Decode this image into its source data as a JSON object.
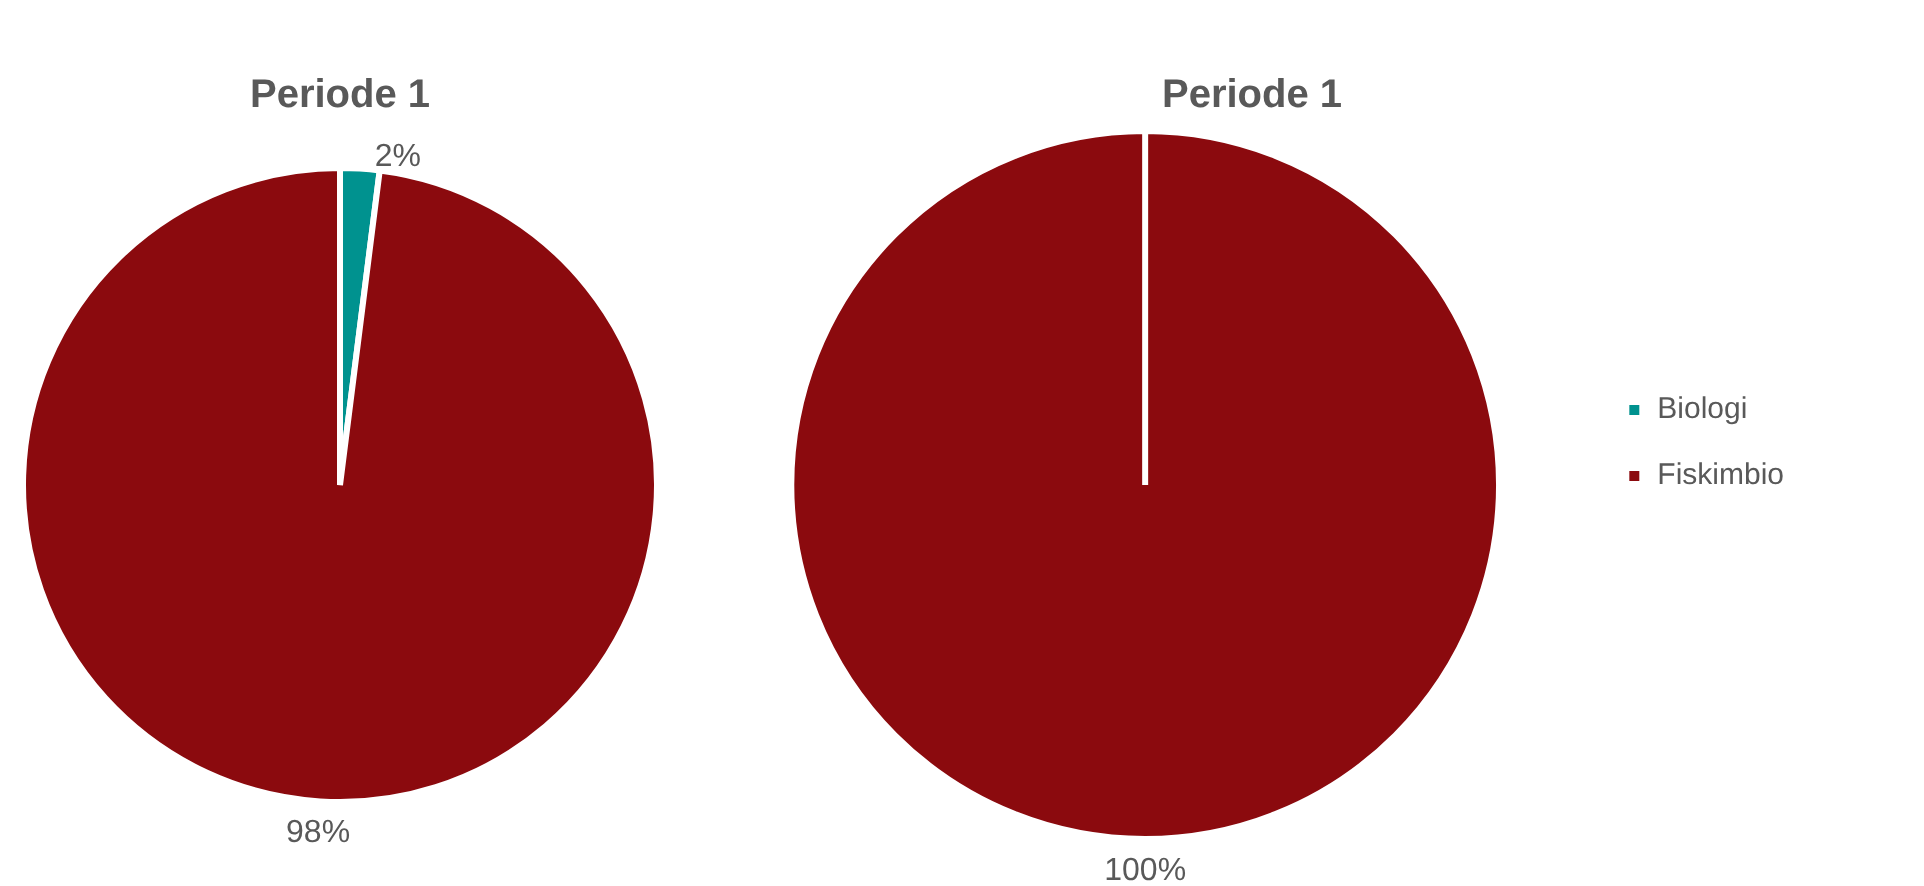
{
  "chart_data": [
    {
      "type": "pie",
      "title": "Periode 1",
      "categories": [
        null,
        null
      ],
      "values": [
        2,
        98
      ],
      "colors": [
        "#00928f",
        "#8b0a0e"
      ],
      "value_labels": [
        "2%",
        "98%"
      ],
      "legend": false
    },
    {
      "type": "pie",
      "title": "Periode 1",
      "categories": [
        "Biologi",
        "Fiskimbio"
      ],
      "values": [
        0,
        100
      ],
      "colors": [
        "#00928f",
        "#8b0a0e"
      ],
      "value_labels": [
        null,
        "100%"
      ],
      "legend": "right"
    }
  ]
}
